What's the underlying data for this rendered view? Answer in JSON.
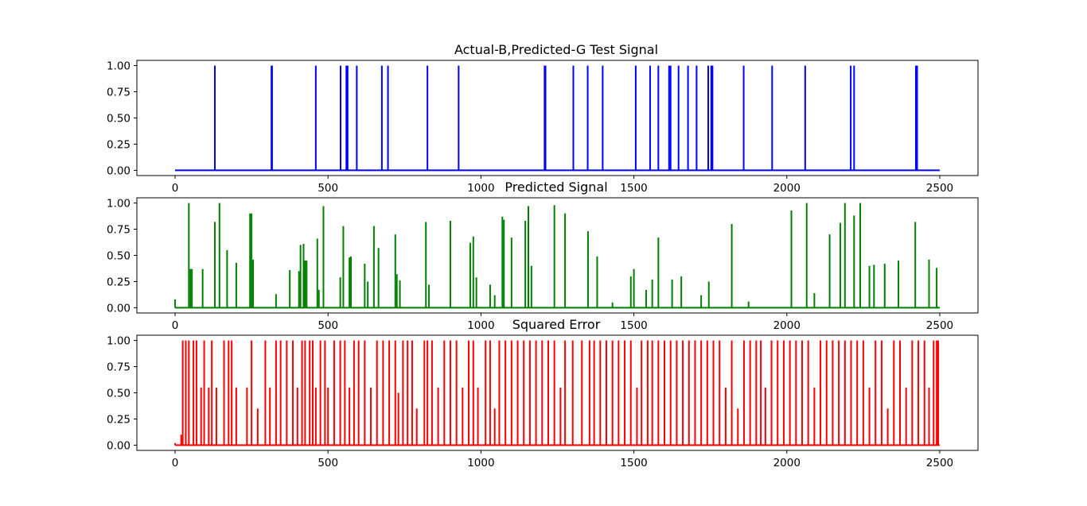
{
  "chart_data": [
    {
      "type": "line",
      "title": "Actual-B,Predicted-G Test Signal",
      "color": "#0000ff",
      "xlim": [
        -125,
        2625
      ],
      "ylim": [
        -0.05,
        1.05
      ],
      "xticks": [
        0,
        500,
        1000,
        1500,
        2000,
        2500
      ],
      "xtick_labels": [
        "0",
        "500",
        "1000",
        "1500",
        "2000",
        "2500"
      ],
      "yticks": [
        0,
        0.25,
        0.5,
        0.75,
        1.0
      ],
      "ytick_labels": [
        "0.00",
        "0.25",
        "0.50",
        "0.75",
        "1.00"
      ],
      "x_range": [
        0,
        2500
      ],
      "series": [
        {
          "spikes": [
            [
              130,
              1
            ],
            [
              315,
              1
            ],
            [
              317,
              1
            ],
            [
              460,
              1
            ],
            [
              541,
              1
            ],
            [
              560,
              1
            ],
            [
              564,
              1
            ],
            [
              594,
              1
            ],
            [
              676,
              1
            ],
            [
              696,
              1
            ],
            [
              825,
              1
            ],
            [
              927,
              1
            ],
            [
              1208,
              1
            ],
            [
              1211,
              1
            ],
            [
              1302,
              1
            ],
            [
              1349,
              1
            ],
            [
              1398,
              1
            ],
            [
              1506,
              1
            ],
            [
              1553,
              1
            ],
            [
              1580,
              1
            ],
            [
              1615,
              1
            ],
            [
              1620,
              1
            ],
            [
              1646,
              1
            ],
            [
              1677,
              1
            ],
            [
              1705,
              1
            ],
            [
              1743,
              1
            ],
            [
              1753,
              1
            ],
            [
              1757,
              1
            ],
            [
              1859,
              1
            ],
            [
              1952,
              1
            ],
            [
              2060,
              1
            ],
            [
              2209,
              1
            ],
            [
              2220,
              1
            ],
            [
              2422,
              1
            ],
            [
              2426,
              1
            ]
          ]
        }
      ]
    },
    {
      "type": "line",
      "title": "Predicted Signal",
      "color": "#008000",
      "xlim": [
        -125,
        2625
      ],
      "ylim": [
        -0.05,
        1.05
      ],
      "xticks": [
        0,
        500,
        1000,
        1500,
        2000,
        2500
      ],
      "xtick_labels": [
        "0",
        "500",
        "1000",
        "1500",
        "2000",
        "2500"
      ],
      "yticks": [
        0,
        0.25,
        0.5,
        0.75,
        1.0
      ],
      "ytick_labels": [
        "0.00",
        "0.25",
        "0.50",
        "0.75",
        "1.00"
      ],
      "x_range": [
        0,
        2500
      ],
      "series": [
        {
          "spikes": [
            [
              0,
              0.08
            ],
            [
              45,
              1.0
            ],
            [
              50,
              0.37
            ],
            [
              55,
              0.37
            ],
            [
              90,
              0.37
            ],
            [
              130,
              0.82
            ],
            [
              145,
              1.0
            ],
            [
              170,
              0.55
            ],
            [
              200,
              0.43
            ],
            [
              245,
              0.9
            ],
            [
              250,
              0.9
            ],
            [
              255,
              0.46
            ],
            [
              330,
              0.13
            ],
            [
              375,
              0.36
            ],
            [
              405,
              0.35
            ],
            [
              410,
              0.6
            ],
            [
              420,
              0.61
            ],
            [
              425,
              0.45
            ],
            [
              430,
              0.45
            ],
            [
              465,
              0.66
            ],
            [
              470,
              0.17
            ],
            [
              485,
              0.97
            ],
            [
              540,
              0.29
            ],
            [
              550,
              0.78
            ],
            [
              570,
              0.48
            ],
            [
              575,
              0.49
            ],
            [
              620,
              0.42
            ],
            [
              630,
              0.25
            ],
            [
              650,
              0.78
            ],
            [
              665,
              0.57
            ],
            [
              720,
              0.7
            ],
            [
              725,
              0.32
            ],
            [
              735,
              0.26
            ],
            [
              820,
              0.82
            ],
            [
              830,
              0.22
            ],
            [
              900,
              0.83
            ],
            [
              965,
              0.62
            ],
            [
              975,
              0.68
            ],
            [
              985,
              0.29
            ],
            [
              1030,
              0.22
            ],
            [
              1045,
              0.12
            ],
            [
              1070,
              0.87
            ],
            [
              1075,
              0.84
            ],
            [
              1100,
              0.67
            ],
            [
              1145,
              0.83
            ],
            [
              1155,
              0.97
            ],
            [
              1165,
              0.4
            ],
            [
              1240,
              0.98
            ],
            [
              1275,
              0.9
            ],
            [
              1350,
              0.73
            ],
            [
              1380,
              0.49
            ],
            [
              1430,
              0.05
            ],
            [
              1490,
              0.3
            ],
            [
              1500,
              0.37
            ],
            [
              1540,
              0.17
            ],
            [
              1560,
              0.27
            ],
            [
              1580,
              0.67
            ],
            [
              1625,
              0.27
            ],
            [
              1655,
              0.3
            ],
            [
              1720,
              0.12
            ],
            [
              1745,
              0.25
            ],
            [
              1820,
              0.8
            ],
            [
              1875,
              0.06
            ],
            [
              2015,
              0.93
            ],
            [
              2065,
              1.0
            ],
            [
              2090,
              0.14
            ],
            [
              2140,
              0.7
            ],
            [
              2175,
              0.81
            ],
            [
              2190,
              1.0
            ],
            [
              2220,
              0.88
            ],
            [
              2240,
              1.0
            ],
            [
              2270,
              0.4
            ],
            [
              2285,
              0.41
            ],
            [
              2320,
              0.42
            ],
            [
              2365,
              0.45
            ],
            [
              2420,
              0.82
            ],
            [
              2465,
              0.46
            ],
            [
              2490,
              0.38
            ]
          ]
        }
      ]
    },
    {
      "type": "line",
      "title": "Squared Error",
      "color": "#ff0000",
      "xlim": [
        -125,
        2625
      ],
      "ylim": [
        -0.05,
        1.05
      ],
      "xticks": [
        0,
        500,
        1000,
        1500,
        2000,
        2500
      ],
      "xtick_labels": [
        "0",
        "500",
        "1000",
        "1500",
        "2000",
        "2500"
      ],
      "yticks": [
        0,
        0.25,
        0.5,
        0.75,
        1.0
      ],
      "ytick_labels": [
        "0.00",
        "0.25",
        "0.50",
        "0.75",
        "1.00"
      ],
      "x_range": [
        0,
        2500
      ],
      "series": [
        {
          "spikes": [
            [
              0,
              0.02
            ],
            [
              20,
              0.1
            ],
            [
              25,
              1.0
            ],
            [
              35,
              1.0
            ],
            [
              45,
              1.0
            ],
            [
              60,
              1.0
            ],
            [
              70,
              1.0
            ],
            [
              85,
              0.55
            ],
            [
              95,
              1.0
            ],
            [
              110,
              0.55
            ],
            [
              120,
              1.0
            ],
            [
              135,
              0.55
            ],
            [
              160,
              1.0
            ],
            [
              175,
              1.0
            ],
            [
              185,
              1.0
            ],
            [
              200,
              0.55
            ],
            [
              235,
              0.55
            ],
            [
              250,
              1.0
            ],
            [
              270,
              0.35
            ],
            [
              295,
              1.0
            ],
            [
              310,
              0.55
            ],
            [
              330,
              1.0
            ],
            [
              345,
              1.0
            ],
            [
              365,
              1.0
            ],
            [
              385,
              1.0
            ],
            [
              400,
              0.55
            ],
            [
              415,
              1.0
            ],
            [
              425,
              1.0
            ],
            [
              440,
              1.0
            ],
            [
              450,
              1.0
            ],
            [
              460,
              0.55
            ],
            [
              475,
              1.0
            ],
            [
              490,
              1.0
            ],
            [
              500,
              0.55
            ],
            [
              520,
              1.0
            ],
            [
              540,
              1.0
            ],
            [
              555,
              1.0
            ],
            [
              570,
              0.55
            ],
            [
              585,
              1.0
            ],
            [
              600,
              1.0
            ],
            [
              620,
              1.0
            ],
            [
              640,
              0.55
            ],
            [
              660,
              1.0
            ],
            [
              680,
              1.0
            ],
            [
              700,
              1.0
            ],
            [
              720,
              1.0
            ],
            [
              730,
              0.5
            ],
            [
              745,
              1.0
            ],
            [
              760,
              1.0
            ],
            [
              775,
              1.0
            ],
            [
              790,
              0.35
            ],
            [
              815,
              1.0
            ],
            [
              825,
              1.0
            ],
            [
              840,
              1.0
            ],
            [
              860,
              0.55
            ],
            [
              880,
              1.0
            ],
            [
              900,
              1.0
            ],
            [
              920,
              1.0
            ],
            [
              940,
              0.55
            ],
            [
              960,
              1.0
            ],
            [
              975,
              1.0
            ],
            [
              990,
              0.55
            ],
            [
              1015,
              1.0
            ],
            [
              1030,
              1.0
            ],
            [
              1045,
              0.35
            ],
            [
              1060,
              1.0
            ],
            [
              1080,
              1.0
            ],
            [
              1100,
              1.0
            ],
            [
              1120,
              1.0
            ],
            [
              1140,
              1.0
            ],
            [
              1160,
              1.0
            ],
            [
              1180,
              1.0
            ],
            [
              1200,
              1.0
            ],
            [
              1220,
              1.0
            ],
            [
              1240,
              1.0
            ],
            [
              1260,
              0.55
            ],
            [
              1275,
              1.0
            ],
            [
              1300,
              1.0
            ],
            [
              1330,
              1.0
            ],
            [
              1355,
              1.0
            ],
            [
              1370,
              1.0
            ],
            [
              1390,
              1.0
            ],
            [
              1410,
              1.0
            ],
            [
              1430,
              1.0
            ],
            [
              1450,
              1.0
            ],
            [
              1470,
              1.0
            ],
            [
              1490,
              1.0
            ],
            [
              1510,
              0.55
            ],
            [
              1525,
              1.0
            ],
            [
              1545,
              1.0
            ],
            [
              1560,
              1.0
            ],
            [
              1580,
              1.0
            ],
            [
              1600,
              1.0
            ],
            [
              1620,
              1.0
            ],
            [
              1640,
              1.0
            ],
            [
              1660,
              1.0
            ],
            [
              1680,
              1.0
            ],
            [
              1700,
              1.0
            ],
            [
              1720,
              1.0
            ],
            [
              1740,
              1.0
            ],
            [
              1760,
              1.0
            ],
            [
              1780,
              1.0
            ],
            [
              1800,
              0.55
            ],
            [
              1820,
              1.0
            ],
            [
              1840,
              0.35
            ],
            [
              1860,
              1.0
            ],
            [
              1880,
              1.0
            ],
            [
              1900,
              1.0
            ],
            [
              1915,
              1.0
            ],
            [
              1930,
              0.55
            ],
            [
              1950,
              1.0
            ],
            [
              1970,
              1.0
            ],
            [
              1990,
              1.0
            ],
            [
              2010,
              1.0
            ],
            [
              2030,
              1.0
            ],
            [
              2050,
              1.0
            ],
            [
              2070,
              1.0
            ],
            [
              2090,
              0.55
            ],
            [
              2110,
              1.0
            ],
            [
              2130,
              1.0
            ],
            [
              2150,
              1.0
            ],
            [
              2170,
              1.0
            ],
            [
              2190,
              1.0
            ],
            [
              2210,
              1.0
            ],
            [
              2230,
              1.0
            ],
            [
              2250,
              1.0
            ],
            [
              2270,
              0.55
            ],
            [
              2290,
              1.0
            ],
            [
              2310,
              1.0
            ],
            [
              2330,
              0.35
            ],
            [
              2350,
              1.0
            ],
            [
              2370,
              1.0
            ],
            [
              2390,
              0.55
            ],
            [
              2410,
              1.0
            ],
            [
              2430,
              1.0
            ],
            [
              2450,
              1.0
            ],
            [
              2465,
              0.55
            ],
            [
              2480,
              1.0
            ],
            [
              2490,
              1.0
            ],
            [
              2495,
              1.0
            ]
          ]
        }
      ]
    }
  ]
}
